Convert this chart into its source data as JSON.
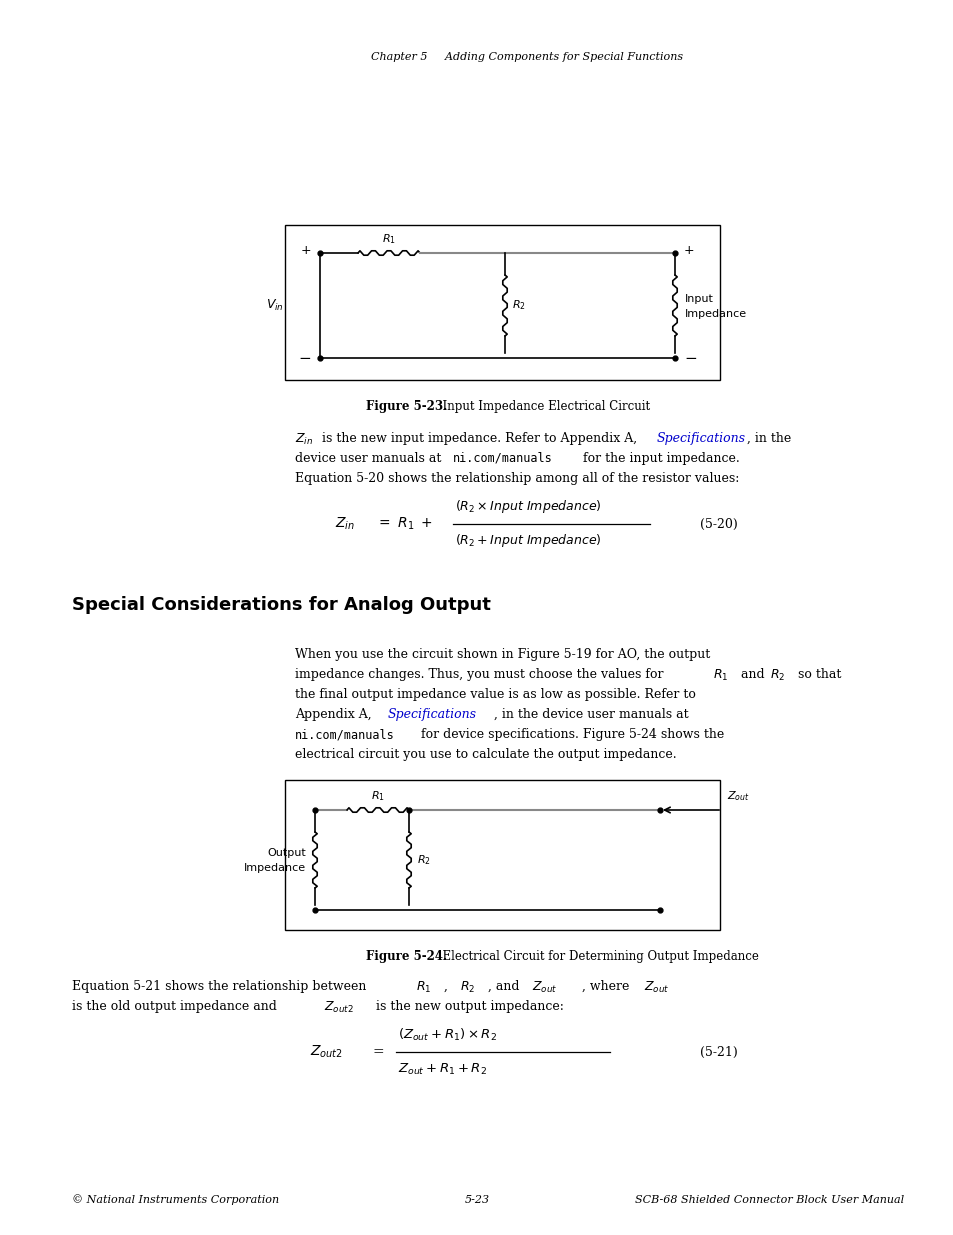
{
  "bg_color": "#ffffff",
  "page_width": 9.54,
  "page_height": 12.35,
  "header_text": "Chapter 5     Adding Components for Special Functions",
  "figure1_caption_bold": "Figure 5-23.",
  "figure1_caption_normal": "  Input Impedance Electrical Circuit",
  "figure2_caption_bold": "Figure 5-24.",
  "figure2_caption_normal": "  Electrical Circuit for Determining Output Impedance",
  "section_title": "Special Considerations for Analog Output",
  "footer_left": "© National Instruments Corporation",
  "footer_center": "5-23",
  "footer_right": "SCB-68 Shielded Connector Block User Manual"
}
